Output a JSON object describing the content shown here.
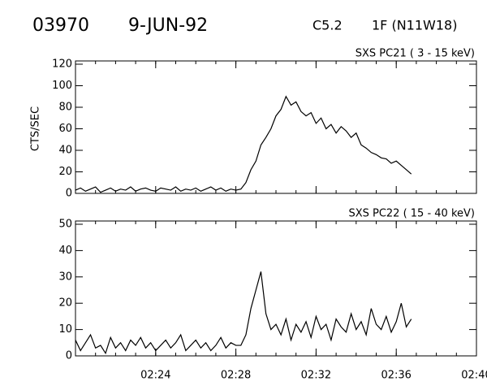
{
  "header": {
    "id": "03970",
    "date": "9-JUN-92",
    "class": "C5.2",
    "flare": "1F (N11W18)"
  },
  "chart_data": [
    {
      "type": "line",
      "title": "SXS PC21  (  3 - 15 keV)",
      "ylabel": "CTS/SEC",
      "color": "#000000",
      "x": [
        20,
        20.25,
        20.5,
        20.75,
        21,
        21.25,
        21.5,
        21.75,
        22,
        22.25,
        22.5,
        22.75,
        23,
        23.25,
        23.5,
        23.75,
        24,
        24.25,
        24.5,
        24.75,
        25,
        25.25,
        25.5,
        25.75,
        26,
        26.25,
        26.5,
        26.75,
        27,
        27.25,
        27.5,
        27.75,
        28,
        28.25,
        28.5,
        28.75,
        29,
        29.25,
        29.5,
        29.75,
        30,
        30.25,
        30.5,
        30.75,
        31,
        31.25,
        31.5,
        31.75,
        32,
        32.25,
        32.5,
        32.75,
        33,
        33.25,
        33.5,
        33.75,
        34,
        34.25,
        34.5,
        34.75,
        35,
        35.25,
        35.5,
        35.75,
        36,
        36.25,
        36.5,
        36.75
      ],
      "series": [
        {
          "values": [
            3,
            5,
            2,
            4,
            6,
            1,
            3,
            5,
            2,
            4,
            3,
            6,
            2,
            4,
            5,
            3,
            2,
            5,
            4,
            3,
            6,
            2,
            4,
            3,
            5,
            2,
            4,
            6,
            3,
            5,
            2,
            4,
            3,
            4,
            10,
            22,
            30,
            45,
            52,
            60,
            72,
            78,
            90,
            82,
            85,
            76,
            72,
            75,
            65,
            70,
            60,
            64,
            56,
            62,
            58,
            52,
            56,
            45,
            42,
            38,
            36,
            33,
            32,
            28,
            30,
            26,
            22,
            18
          ]
        }
      ],
      "xlim": [
        20,
        40
      ],
      "xticks": [
        24,
        28,
        32,
        36,
        40
      ],
      "ylim": [
        0,
        120
      ],
      "yticks": [
        0,
        20,
        40,
        60,
        80,
        100,
        120
      ]
    },
    {
      "type": "line",
      "title": "SXS PC22  ( 15 - 40 keV)",
      "color": "#000000",
      "x": [
        20,
        20.25,
        20.5,
        20.75,
        21,
        21.25,
        21.5,
        21.75,
        22,
        22.25,
        22.5,
        22.75,
        23,
        23.25,
        23.5,
        23.75,
        24,
        24.25,
        24.5,
        24.75,
        25,
        25.25,
        25.5,
        25.75,
        26,
        26.25,
        26.5,
        26.75,
        27,
        27.25,
        27.5,
        27.75,
        28,
        28.25,
        28.5,
        28.75,
        29,
        29.25,
        29.5,
        29.75,
        30,
        30.25,
        30.5,
        30.75,
        31,
        31.25,
        31.5,
        31.75,
        32,
        32.25,
        32.5,
        32.75,
        33,
        33.25,
        33.5,
        33.75,
        34,
        34.25,
        34.5,
        34.75,
        35,
        35.25,
        35.5,
        35.75,
        36,
        36.25,
        36.5,
        36.75
      ],
      "series": [
        {
          "values": [
            6,
            2,
            5,
            8,
            3,
            4,
            1,
            7,
            3,
            5,
            2,
            6,
            4,
            7,
            3,
            5,
            2,
            4,
            6,
            3,
            5,
            8,
            2,
            4,
            6,
            3,
            5,
            2,
            4,
            7,
            3,
            5,
            4,
            4,
            8,
            18,
            25,
            32,
            16,
            10,
            12,
            8,
            14,
            6,
            12,
            9,
            13,
            7,
            15,
            10,
            12,
            6,
            14,
            11,
            9,
            16,
            10,
            13,
            8,
            18,
            12,
            10,
            15,
            9,
            13,
            20,
            11,
            14
          ]
        }
      ],
      "xlim": [
        20,
        40
      ],
      "xticks": [
        {
          "value": 24,
          "label": "02:24"
        },
        {
          "value": 28,
          "label": "02:28"
        },
        {
          "value": 32,
          "label": "02:32"
        },
        {
          "value": 36,
          "label": "02:36"
        },
        {
          "value": 40,
          "label": "02:40"
        }
      ],
      "ylim": [
        0,
        50
      ],
      "yticks": [
        0,
        10,
        20,
        30,
        40,
        50
      ]
    }
  ]
}
